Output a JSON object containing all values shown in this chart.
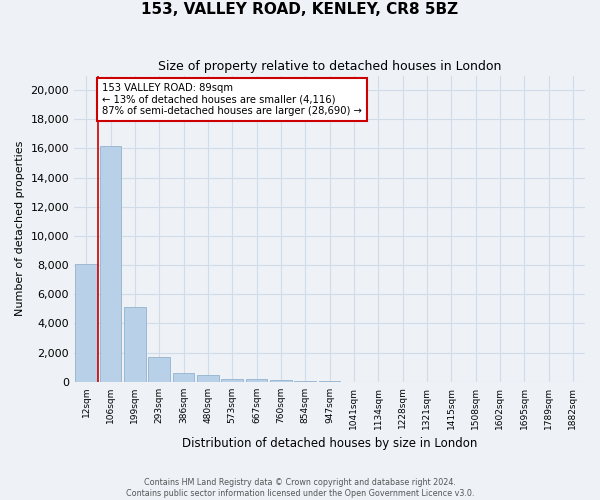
{
  "title": "153, VALLEY ROAD, KENLEY, CR8 5BZ",
  "subtitle": "Size of property relative to detached houses in London",
  "xlabel": "Distribution of detached houses by size in London",
  "ylabel": "Number of detached properties",
  "categories": [
    "12sqm",
    "106sqm",
    "199sqm",
    "293sqm",
    "386sqm",
    "480sqm",
    "573sqm",
    "667sqm",
    "760sqm",
    "854sqm",
    "947sqm",
    "1041sqm",
    "1134sqm",
    "1228sqm",
    "1321sqm",
    "1415sqm",
    "1508sqm",
    "1602sqm",
    "1695sqm",
    "1789sqm",
    "1882sqm"
  ],
  "values": [
    8050,
    16200,
    5100,
    1700,
    620,
    460,
    200,
    150,
    90,
    50,
    15,
    5,
    3,
    2,
    1,
    1,
    0,
    0,
    0,
    0,
    0
  ],
  "bar_color": "#b8d0e8",
  "bar_edge_color": "#88aac8",
  "grid_color": "#d0dce8",
  "background_color": "#eef2f7",
  "vline_color": "#cc0000",
  "annotation_text": "153 VALLEY ROAD: 89sqm\n← 13% of detached houses are smaller (4,116)\n87% of semi-detached houses are larger (28,690) →",
  "annotation_box_color": "#ffffff",
  "annotation_box_edge": "#cc0000",
  "ylim": [
    0,
    21000
  ],
  "yticks": [
    0,
    2000,
    4000,
    6000,
    8000,
    10000,
    12000,
    14000,
    16000,
    18000,
    20000
  ],
  "footer1": "Contains HM Land Registry data © Crown copyright and database right 2024.",
  "footer2": "Contains public sector information licensed under the Open Government Licence v3.0."
}
